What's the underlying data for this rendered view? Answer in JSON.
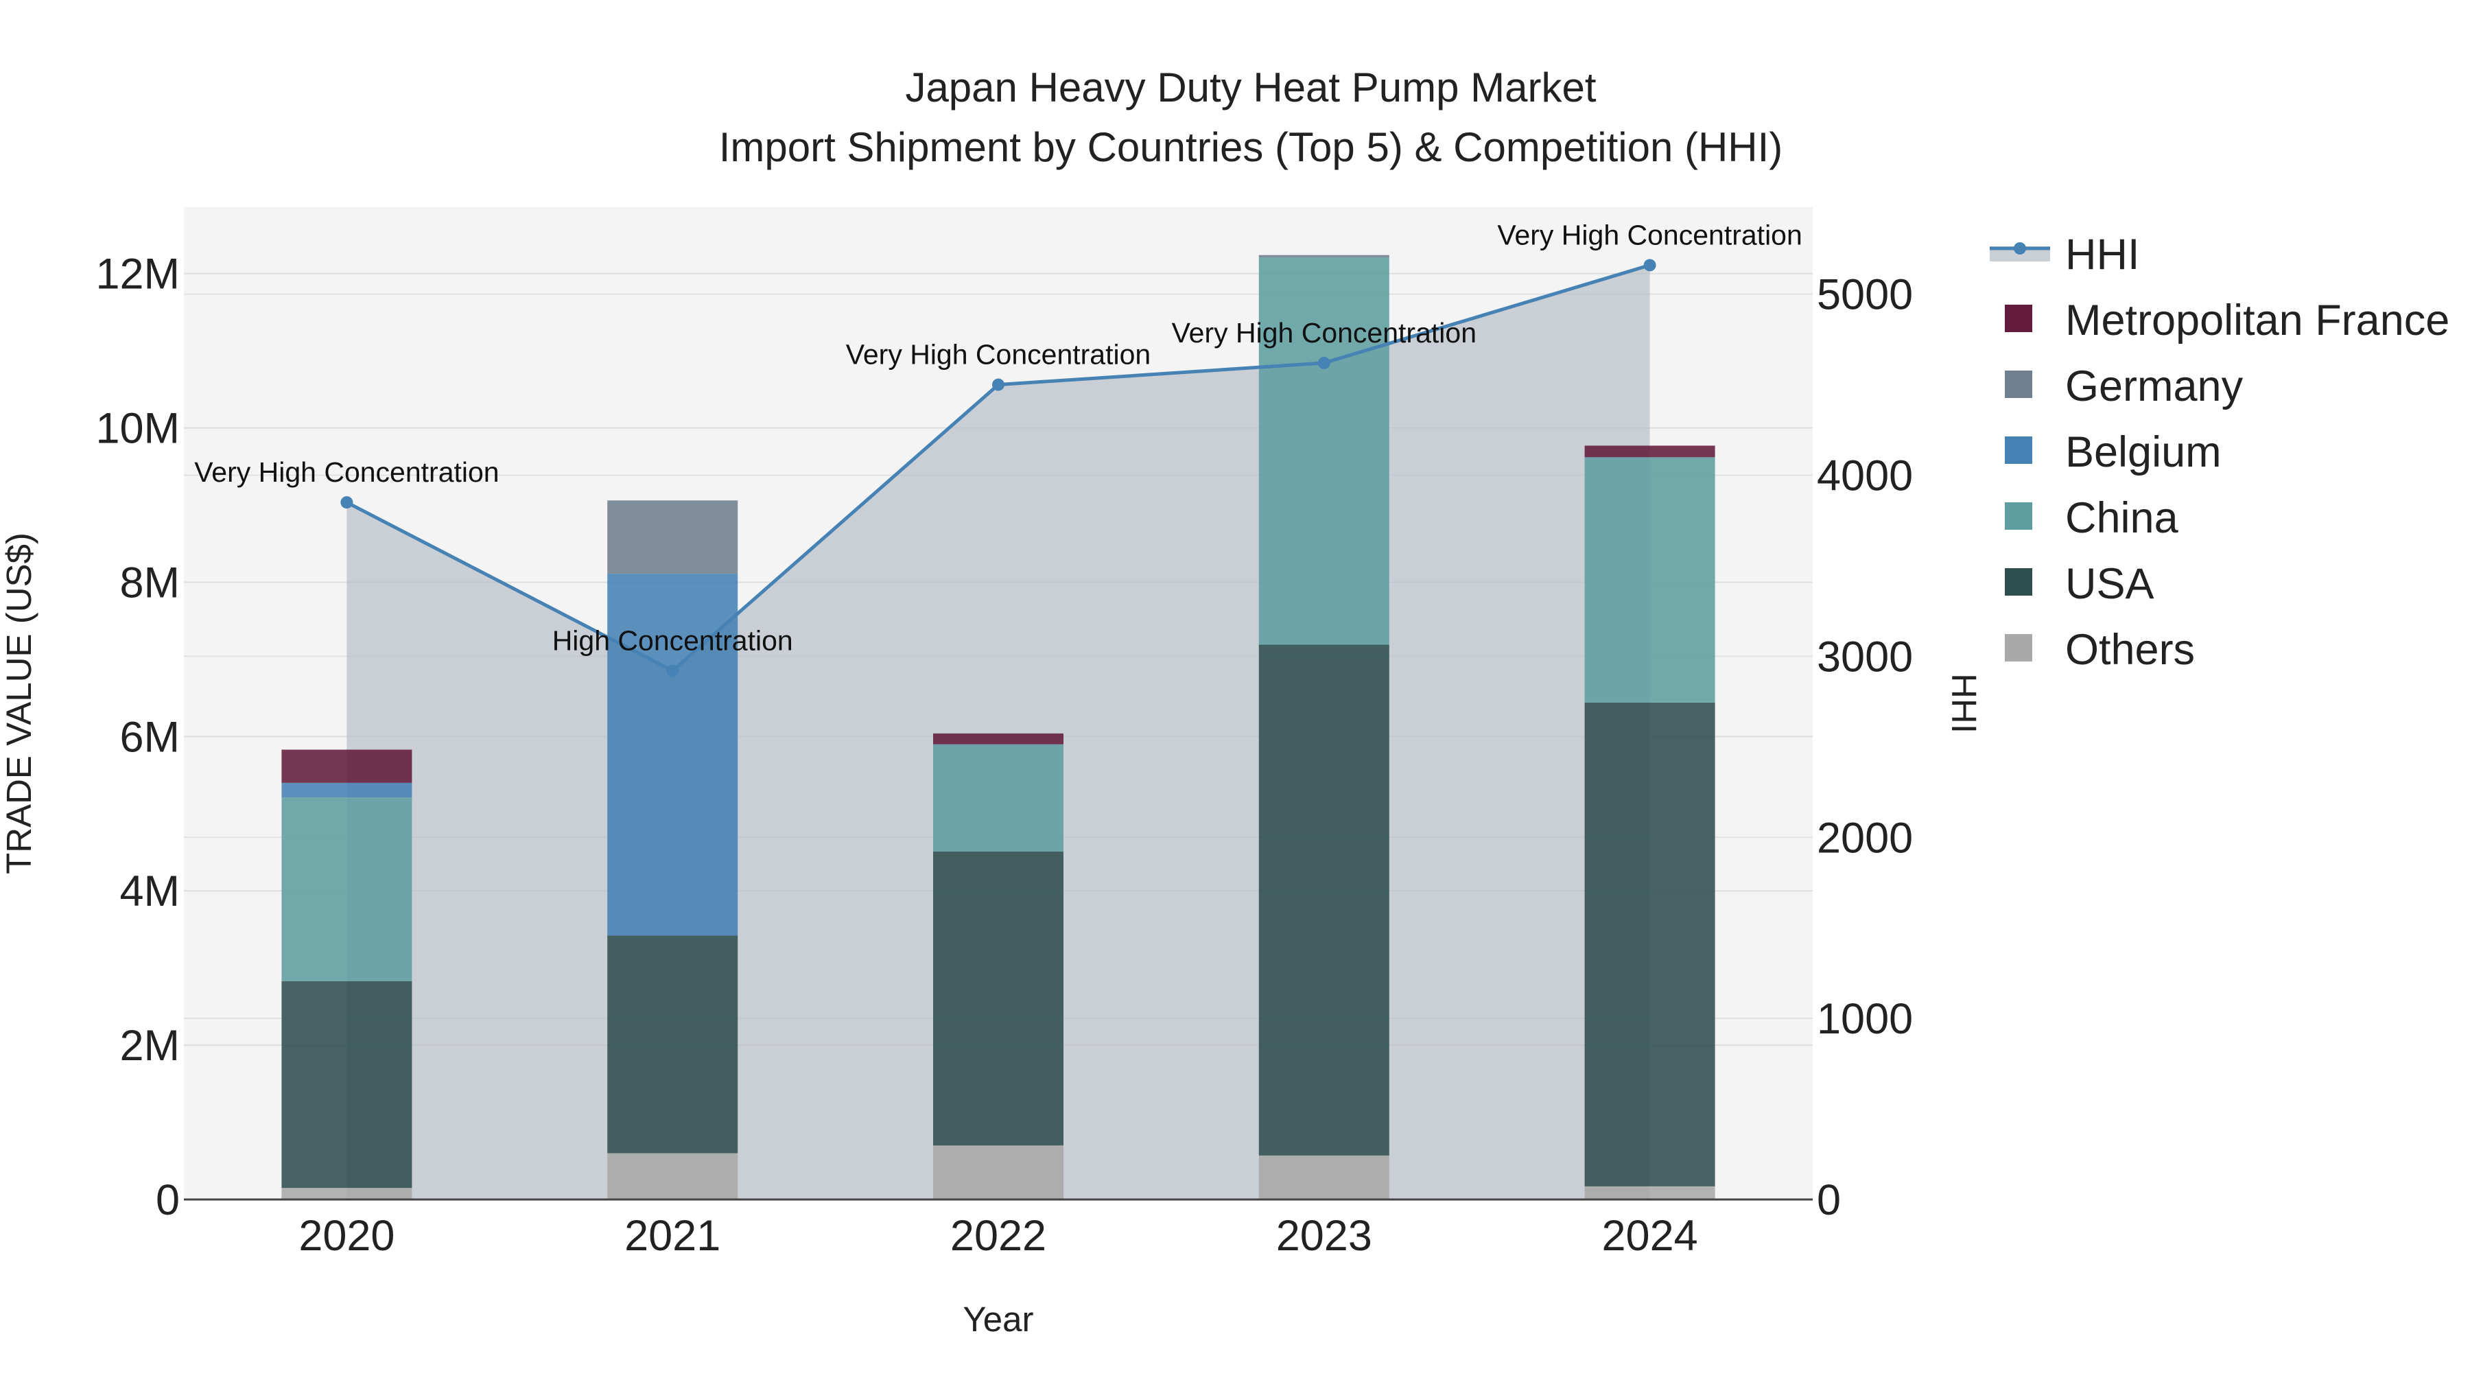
{
  "chart_data": {
    "type": "bar",
    "title": "Japan Heavy Duty Heat Pump Market",
    "subtitle": "Import Shipment by Countries (Top 5) & Competition (HHI)",
    "xlabel": "Year",
    "ylabel": "TRADE VALUE (US$)",
    "y2label": "HHI",
    "categories": [
      "2020",
      "2021",
      "2022",
      "2023",
      "2024"
    ],
    "ylim": [
      0,
      12860000
    ],
    "y2lim": [
      0,
      5480
    ],
    "y_ticks": [
      0,
      2000000,
      4000000,
      6000000,
      8000000,
      10000000,
      12000000
    ],
    "y_tick_labels": [
      "0",
      "2M",
      "4M",
      "6M",
      "8M",
      "10M",
      "12M"
    ],
    "y2_ticks": [
      0,
      1000,
      2000,
      3000,
      4000,
      5000
    ],
    "y2_tick_labels": [
      "0",
      "1000",
      "2000",
      "3000",
      "4000",
      "5000"
    ],
    "series": [
      {
        "name": "Others",
        "color": "#A9A9A9",
        "values": [
          150000,
          600000,
          700000,
          570000,
          170000
        ]
      },
      {
        "name": "USA",
        "color": "#2F4F4F",
        "values": [
          2680000,
          2820000,
          3810000,
          6620000,
          6270000
        ]
      },
      {
        "name": "China",
        "color": "#5F9EA0",
        "values": [
          2380000,
          0,
          1390000,
          5020000,
          3180000
        ]
      },
      {
        "name": "Belgium",
        "color": "#4682B4",
        "values": [
          190000,
          4690000,
          0,
          0,
          0
        ]
      },
      {
        "name": "Germany",
        "color": "#708090",
        "values": [
          0,
          950000,
          0,
          30000,
          0
        ]
      },
      {
        "name": "Metropolitan France",
        "color": "#621B3A",
        "values": [
          430000,
          0,
          140000,
          0,
          150000
        ]
      }
    ],
    "hhi": {
      "name": "HHI",
      "color": "#4682B4",
      "values": [
        3850,
        2920,
        4500,
        4620,
        5160
      ],
      "labels": [
        "Very High Concentration",
        "High Concentration",
        "Very High Concentration",
        "Very High Concentration",
        "Very High Concentration"
      ]
    },
    "legend": [
      "HHI",
      "Metropolitan France",
      "Germany",
      "Belgium",
      "China",
      "USA",
      "Others"
    ]
  }
}
